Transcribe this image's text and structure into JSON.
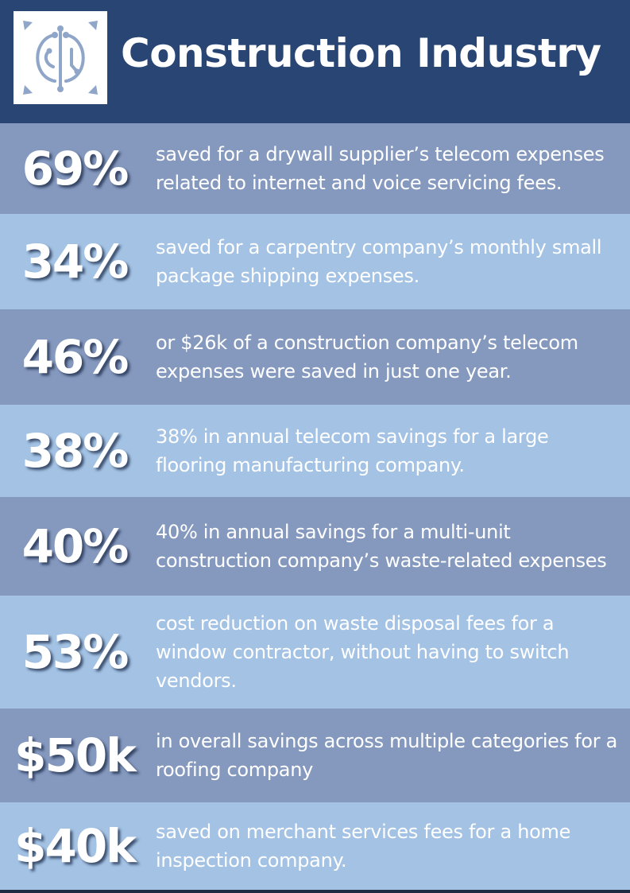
{
  "header": {
    "title": "Construction Industry",
    "logo_icon": "circuit-logo-icon",
    "background_color": "#284574"
  },
  "stats": [
    {
      "value": "69%",
      "description": "saved for a drywall supplier’s telecom expenses related to internet and voice servicing fees."
    },
    {
      "value": "34%",
      "description": "saved for a carpentry company’s monthly small package shipping expenses."
    },
    {
      "value": "46%",
      "description": "or $26k of a construction company’s telecom expenses were saved in just one year."
    },
    {
      "value": "38%",
      "description": "38% in annual telecom savings for a large flooring manufacturing company."
    },
    {
      "value": "40%",
      "description": "40% in annual savings for a multi-unit construction company’s waste-related expenses"
    },
    {
      "value": "53%",
      "description": "cost reduction on waste disposal fees for a window contractor, without having to switch vendors."
    },
    {
      "value": "$50k",
      "description": "in overall savings across multiple categories for a roofing company"
    },
    {
      "value": "$40k",
      "description": "saved on merchant services fees for a home inspection company."
    }
  ],
  "colors": {
    "row_dark": "#8599bf",
    "row_light": "#a3c2e4",
    "text": "#ffffff"
  }
}
